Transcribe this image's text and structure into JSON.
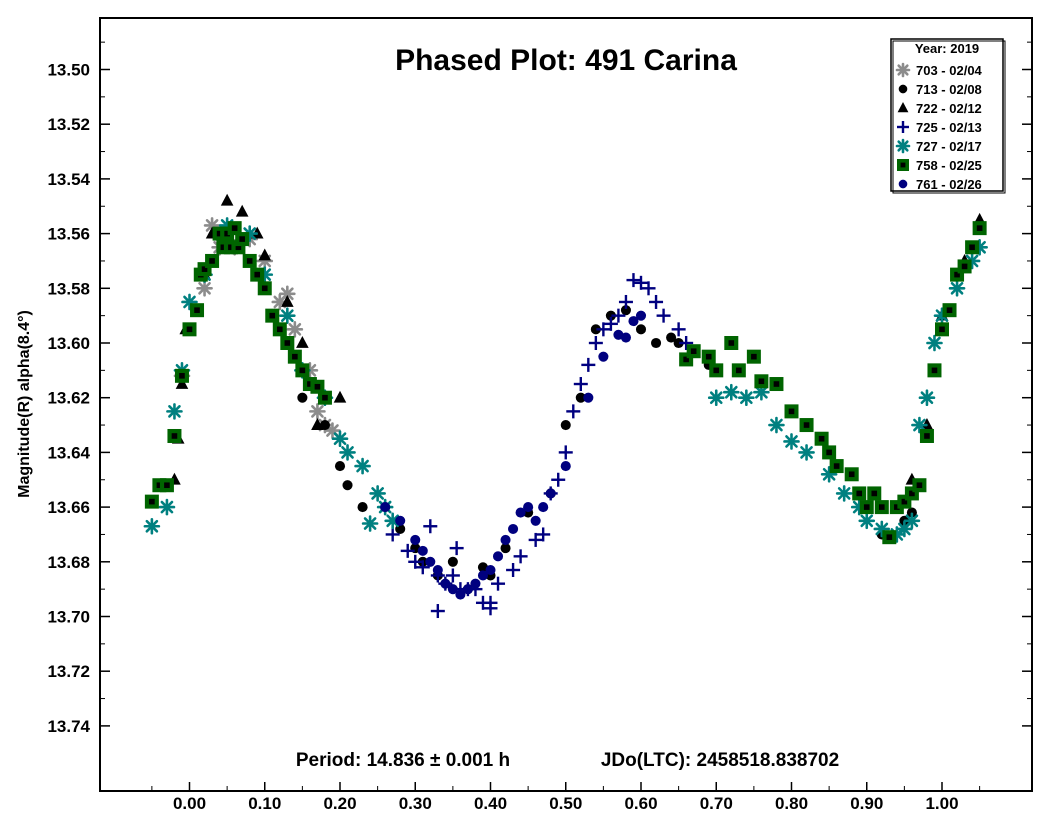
{
  "chart_data": {
    "type": "scatter",
    "title": "Phased Plot: 491 Carina",
    "xlabel": "",
    "ylabel": "Magnitude(R) alpha(8.4°)",
    "xlim": [
      -0.12,
      1.12
    ],
    "ylim": [
      13.48,
      13.765
    ],
    "y_inverted": true,
    "grid": false,
    "legend_position": "top-right",
    "legend_title": "Year: 2019",
    "x_ticks": [
      "0.00",
      "0.10",
      "0.20",
      "0.30",
      "0.40",
      "0.50",
      "0.60",
      "0.70",
      "0.80",
      "0.90",
      "1.00"
    ],
    "y_ticks": [
      "13.50",
      "13.52",
      "13.54",
      "13.56",
      "13.58",
      "13.60",
      "13.62",
      "13.64",
      "13.66",
      "13.68",
      "13.70",
      "13.72",
      "13.74"
    ],
    "footer_period": "Period: 14.836 ± 0.001 h",
    "footer_epoch": "JDo(LTC): 2458518.838702",
    "series": [
      {
        "name": "703 - 02/04",
        "marker": "asterisk",
        "color": "#8c8c8c",
        "points": [
          [
            0.03,
            13.557
          ],
          [
            0.04,
            13.565
          ],
          [
            0.05,
            13.56
          ],
          [
            0.06,
            13.565
          ],
          [
            0.08,
            13.562
          ],
          [
            0.1,
            13.57
          ],
          [
            0.12,
            13.585
          ],
          [
            0.13,
            13.582
          ],
          [
            0.14,
            13.595
          ],
          [
            0.16,
            13.61
          ],
          [
            0.17,
            13.625
          ],
          [
            0.18,
            13.63
          ],
          [
            -0.01,
            13.612
          ],
          [
            0.02,
            13.58
          ],
          [
            0.19,
            13.632
          ]
        ]
      },
      {
        "name": "713 - 02/08",
        "marker": "circle",
        "color": "#000000",
        "points": [
          [
            0.15,
            13.62
          ],
          [
            0.18,
            13.63
          ],
          [
            0.2,
            13.645
          ],
          [
            0.21,
            13.652
          ],
          [
            0.23,
            13.66
          ],
          [
            0.26,
            13.66
          ],
          [
            0.28,
            13.668
          ],
          [
            0.3,
            13.675
          ],
          [
            0.31,
            13.68
          ],
          [
            0.33,
            13.685
          ],
          [
            0.35,
            13.68
          ],
          [
            0.37,
            13.69
          ],
          [
            0.39,
            13.682
          ],
          [
            0.4,
            13.685
          ],
          [
            0.42,
            13.675
          ],
          [
            0.45,
            13.662
          ],
          [
            0.48,
            13.655
          ],
          [
            0.5,
            13.63
          ],
          [
            0.52,
            13.62
          ],
          [
            0.54,
            13.595
          ],
          [
            0.56,
            13.59
          ],
          [
            0.58,
            13.588
          ],
          [
            0.6,
            13.595
          ],
          [
            0.62,
            13.6
          ],
          [
            0.64,
            13.598
          ],
          [
            0.65,
            13.6
          ],
          [
            0.67,
            13.603
          ],
          [
            0.69,
            13.608
          ],
          [
            0.7,
            13.61
          ],
          [
            0.9,
            13.66
          ],
          [
            0.92,
            13.67
          ],
          [
            0.95,
            13.665
          ],
          [
            0.96,
            13.662
          ]
        ]
      },
      {
        "name": "722 - 02/12",
        "marker": "triangle",
        "color": "#000000",
        "points": [
          [
            -0.02,
            13.65
          ],
          [
            -0.015,
            13.635
          ],
          [
            -0.01,
            13.615
          ],
          [
            -0.005,
            13.595
          ],
          [
            0.02,
            13.575
          ],
          [
            0.03,
            13.56
          ],
          [
            0.05,
            13.548
          ],
          [
            0.07,
            13.552
          ],
          [
            0.09,
            13.56
          ],
          [
            0.1,
            13.568
          ],
          [
            0.13,
            13.585
          ],
          [
            0.15,
            13.6
          ],
          [
            0.17,
            13.63
          ],
          [
            0.2,
            13.62
          ],
          [
            0.96,
            13.65
          ],
          [
            0.98,
            13.63
          ],
          [
            0.99,
            13.61
          ],
          [
            1.0,
            13.59
          ],
          [
            1.03,
            13.57
          ],
          [
            1.05,
            13.555
          ]
        ]
      },
      {
        "name": "725 - 02/13",
        "marker": "plus",
        "color": "#000080",
        "points": [
          [
            0.27,
            13.67
          ],
          [
            0.29,
            13.676
          ],
          [
            0.3,
            13.68
          ],
          [
            0.31,
            13.682
          ],
          [
            0.32,
            13.667
          ],
          [
            0.33,
            13.685
          ],
          [
            0.34,
            13.688
          ],
          [
            0.35,
            13.685
          ],
          [
            0.355,
            13.675
          ],
          [
            0.36,
            13.69
          ],
          [
            0.37,
            13.69
          ],
          [
            0.38,
            13.69
          ],
          [
            0.39,
            13.695
          ],
          [
            0.4,
            13.695
          ],
          [
            0.41,
            13.688
          ],
          [
            0.43,
            13.683
          ],
          [
            0.44,
            13.678
          ],
          [
            0.46,
            13.672
          ],
          [
            0.47,
            13.67
          ],
          [
            0.48,
            13.655
          ],
          [
            0.49,
            13.65
          ],
          [
            0.5,
            13.64
          ],
          [
            0.51,
            13.625
          ],
          [
            0.52,
            13.615
          ],
          [
            0.53,
            13.608
          ],
          [
            0.54,
            13.6
          ],
          [
            0.55,
            13.595
          ],
          [
            0.56,
            13.593
          ],
          [
            0.57,
            13.59
          ],
          [
            0.58,
            13.585
          ],
          [
            0.59,
            13.577
          ],
          [
            0.6,
            13.578
          ],
          [
            0.61,
            13.58
          ],
          [
            0.62,
            13.585
          ],
          [
            0.63,
            13.59
          ],
          [
            0.65,
            13.595
          ],
          [
            0.66,
            13.6
          ],
          [
            0.33,
            13.698
          ],
          [
            0.4,
            13.697
          ]
        ]
      },
      {
        "name": "727 - 02/17",
        "marker": "asterisk",
        "color": "#008080",
        "points": [
          [
            -0.05,
            13.667
          ],
          [
            -0.03,
            13.66
          ],
          [
            -0.02,
            13.625
          ],
          [
            -0.01,
            13.61
          ],
          [
            0.0,
            13.585
          ],
          [
            0.02,
            13.575
          ],
          [
            0.05,
            13.557
          ],
          [
            0.08,
            13.56
          ],
          [
            0.1,
            13.575
          ],
          [
            0.13,
            13.59
          ],
          [
            0.15,
            13.61
          ],
          [
            0.18,
            13.62
          ],
          [
            0.2,
            13.635
          ],
          [
            0.21,
            13.64
          ],
          [
            0.23,
            13.645
          ],
          [
            0.25,
            13.655
          ],
          [
            0.26,
            13.66
          ],
          [
            0.27,
            13.665
          ],
          [
            0.24,
            13.666
          ],
          [
            0.7,
            13.62
          ],
          [
            0.72,
            13.618
          ],
          [
            0.74,
            13.62
          ],
          [
            0.76,
            13.618
          ],
          [
            0.78,
            13.63
          ],
          [
            0.8,
            13.636
          ],
          [
            0.82,
            13.64
          ],
          [
            0.85,
            13.648
          ],
          [
            0.87,
            13.655
          ],
          [
            0.89,
            13.66
          ],
          [
            0.9,
            13.665
          ],
          [
            0.92,
            13.668
          ],
          [
            0.94,
            13.67
          ],
          [
            0.95,
            13.668
          ],
          [
            0.96,
            13.665
          ],
          [
            0.97,
            13.63
          ],
          [
            0.98,
            13.62
          ],
          [
            1.0,
            13.59
          ],
          [
            1.02,
            13.58
          ],
          [
            1.04,
            13.57
          ],
          [
            1.05,
            13.565
          ],
          [
            0.99,
            13.6
          ]
        ]
      },
      {
        "name": "758 - 02/25",
        "marker": "square",
        "color": "#006400",
        "points": [
          [
            -0.05,
            13.658
          ],
          [
            -0.04,
            13.652
          ],
          [
            -0.03,
            13.652
          ],
          [
            -0.02,
            13.634
          ],
          [
            -0.01,
            13.612
          ],
          [
            0.0,
            13.595
          ],
          [
            0.01,
            13.588
          ],
          [
            0.015,
            13.575
          ],
          [
            0.02,
            13.573
          ],
          [
            0.03,
            13.57
          ],
          [
            0.04,
            13.56
          ],
          [
            0.045,
            13.565
          ],
          [
            0.05,
            13.56
          ],
          [
            0.055,
            13.565
          ],
          [
            0.06,
            13.558
          ],
          [
            0.065,
            13.565
          ],
          [
            0.07,
            13.562
          ],
          [
            0.08,
            13.57
          ],
          [
            0.09,
            13.575
          ],
          [
            0.1,
            13.58
          ],
          [
            0.11,
            13.59
          ],
          [
            0.12,
            13.595
          ],
          [
            0.13,
            13.6
          ],
          [
            0.14,
            13.605
          ],
          [
            0.15,
            13.61
          ],
          [
            0.16,
            13.615
          ],
          [
            0.17,
            13.616
          ],
          [
            0.18,
            13.62
          ],
          [
            0.66,
            13.606
          ],
          [
            0.67,
            13.603
          ],
          [
            0.69,
            13.605
          ],
          [
            0.7,
            13.61
          ],
          [
            0.72,
            13.6
          ],
          [
            0.73,
            13.61
          ],
          [
            0.75,
            13.605
          ],
          [
            0.76,
            13.614
          ],
          [
            0.78,
            13.615
          ],
          [
            0.8,
            13.625
          ],
          [
            0.82,
            13.63
          ],
          [
            0.84,
            13.635
          ],
          [
            0.85,
            13.64
          ],
          [
            0.86,
            13.645
          ],
          [
            0.88,
            13.648
          ],
          [
            0.89,
            13.655
          ],
          [
            0.9,
            13.66
          ],
          [
            0.91,
            13.655
          ],
          [
            0.92,
            13.66
          ],
          [
            0.93,
            13.671
          ],
          [
            0.94,
            13.66
          ],
          [
            0.95,
            13.658
          ],
          [
            0.96,
            13.655
          ],
          [
            0.97,
            13.652
          ],
          [
            0.98,
            13.634
          ],
          [
            0.99,
            13.61
          ],
          [
            1.0,
            13.595
          ],
          [
            1.01,
            13.588
          ],
          [
            1.02,
            13.575
          ],
          [
            1.03,
            13.572
          ],
          [
            1.04,
            13.565
          ],
          [
            1.05,
            13.558
          ]
        ]
      },
      {
        "name": "761 - 02/26",
        "marker": "circle",
        "color": "#00007f",
        "points": [
          [
            0.26,
            13.66
          ],
          [
            0.28,
            13.665
          ],
          [
            0.3,
            13.672
          ],
          [
            0.31,
            13.676
          ],
          [
            0.32,
            13.68
          ],
          [
            0.33,
            13.683
          ],
          [
            0.34,
            13.688
          ],
          [
            0.35,
            13.69
          ],
          [
            0.36,
            13.692
          ],
          [
            0.37,
            13.69
          ],
          [
            0.38,
            13.688
          ],
          [
            0.39,
            13.685
          ],
          [
            0.4,
            13.683
          ],
          [
            0.41,
            13.678
          ],
          [
            0.42,
            13.672
          ],
          [
            0.43,
            13.668
          ],
          [
            0.44,
            13.662
          ],
          [
            0.45,
            13.66
          ],
          [
            0.46,
            13.665
          ],
          [
            0.47,
            13.66
          ],
          [
            0.48,
            13.655
          ],
          [
            0.5,
            13.645
          ],
          [
            0.53,
            13.62
          ],
          [
            0.55,
            13.605
          ],
          [
            0.57,
            13.597
          ],
          [
            0.58,
            13.598
          ],
          [
            0.59,
            13.592
          ],
          [
            0.6,
            13.59
          ]
        ]
      }
    ]
  }
}
